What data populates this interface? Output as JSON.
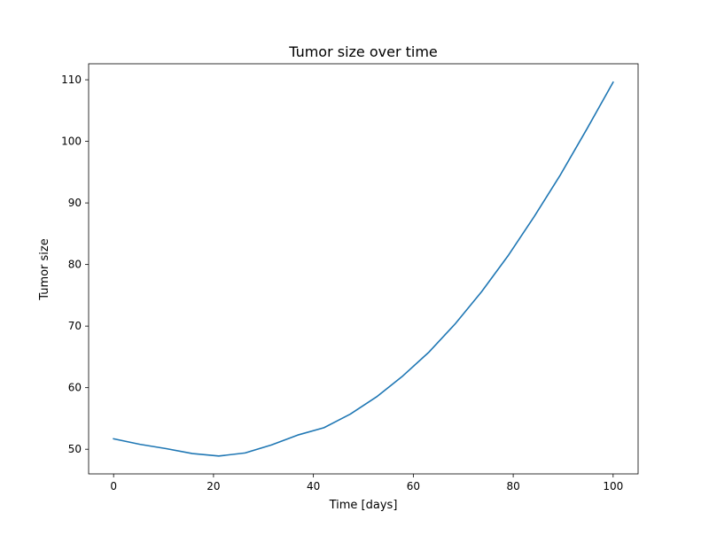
{
  "chart_data": {
    "type": "line",
    "title": "Tumor size over time",
    "xlabel": "Time [days]",
    "ylabel": "Tumor size",
    "xlim": [
      -5,
      105
    ],
    "ylim": [
      46,
      112.6
    ],
    "xticks": [
      0,
      20,
      40,
      60,
      80,
      100
    ],
    "yticks": [
      50,
      60,
      70,
      80,
      90,
      100,
      110
    ],
    "grid": false,
    "legend": "none",
    "series": [
      {
        "color": "#1f77b4",
        "x": [
          0,
          5.26,
          10.53,
          15.79,
          21.05,
          26.32,
          31.58,
          36.84,
          42.11,
          47.37,
          52.63,
          57.89,
          63.16,
          68.42,
          73.68,
          78.95,
          84.21,
          89.47,
          94.74,
          100
        ],
        "y": [
          51.7,
          50.8,
          50.1,
          49.3,
          48.9,
          49.4,
          50.7,
          52.3,
          53.5,
          55.7,
          58.5,
          61.9,
          65.8,
          70.4,
          75.6,
          81.4,
          87.8,
          94.6,
          102.0,
          109.6
        ]
      }
    ]
  }
}
